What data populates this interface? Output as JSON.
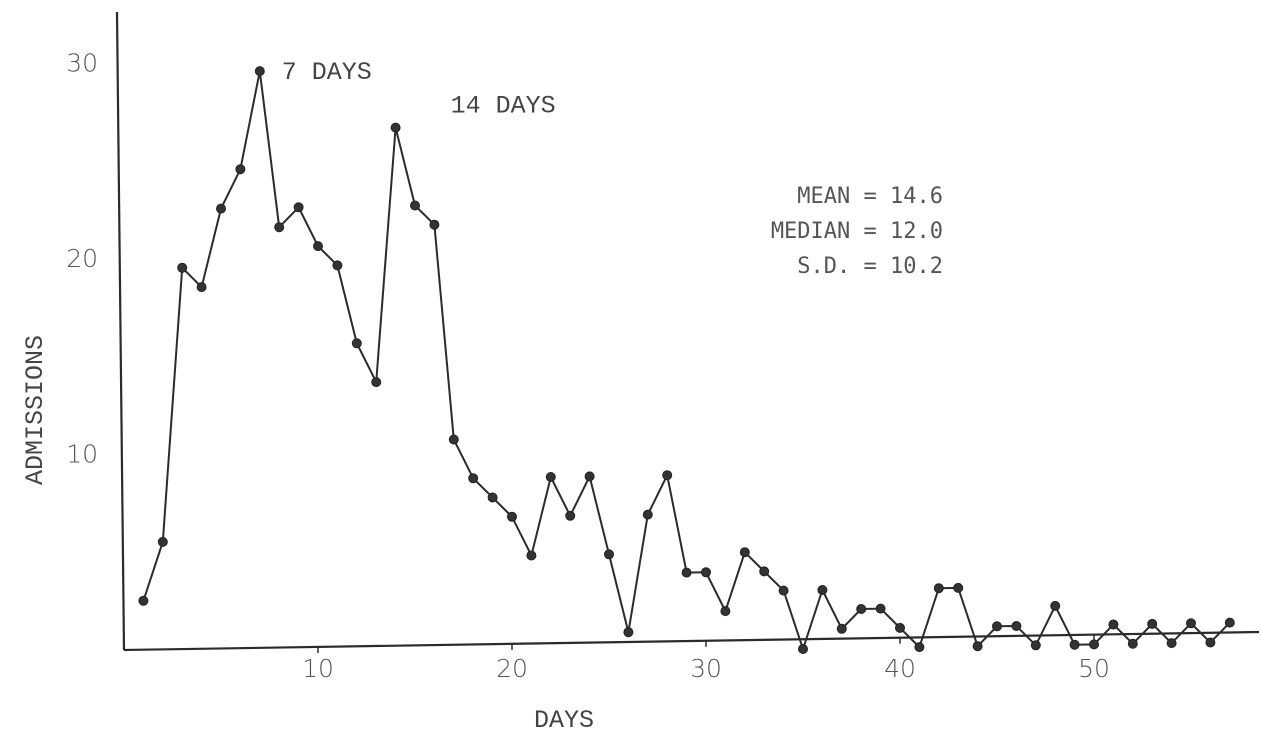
{
  "chart_data": {
    "type": "line",
    "title": "",
    "xlabel": "DAYS",
    "ylabel": "ADMISSIONS",
    "xlim": [
      0,
      58
    ],
    "ylim": [
      0,
      32
    ],
    "x_ticks": [
      10,
      20,
      30,
      40,
      50
    ],
    "y_ticks": [
      10,
      20,
      30
    ],
    "grid": false,
    "series": [
      {
        "x": [
          1,
          2,
          3,
          4,
          5,
          6,
          7,
          8,
          9,
          10,
          11,
          12,
          13,
          14,
          15,
          16,
          17,
          18,
          19,
          20,
          21,
          22,
          23,
          24,
          25,
          26,
          27,
          28,
          29,
          30,
          31,
          32,
          33,
          34,
          35,
          36,
          37,
          38,
          39,
          40,
          41,
          42,
          43,
          44,
          45,
          46,
          47,
          48,
          49,
          50,
          51,
          52,
          53,
          54,
          55,
          56,
          57
        ],
        "values": [
          2.5,
          5.5,
          19.5,
          18.5,
          22.5,
          24.5,
          29.5,
          21.5,
          22.5,
          20.5,
          19.5,
          15.5,
          13.5,
          26.5,
          22.5,
          21.5,
          10.5,
          8.5,
          7.5,
          6.5,
          4.5,
          8.5,
          6.5,
          8.5,
          4.5,
          0.5,
          6.5,
          8.5,
          3.5,
          3.5,
          1.5,
          4.5,
          3.5,
          2.5,
          -0.5,
          2.5,
          0.5,
          1.5,
          1.5,
          0.5,
          -0.5,
          2.5,
          2.5,
          -0.5,
          0.5,
          0.5,
          -0.5,
          1.5,
          -0.5,
          -0.5,
          0.5,
          -0.5,
          0.5,
          -0.5,
          0.5,
          -0.5,
          0.5
        ]
      }
    ],
    "annotations": [
      {
        "text": "7 DAYS",
        "x": 7,
        "y": 29.5
      },
      {
        "text": "14 DAYS",
        "x": 14,
        "y": 26.5
      }
    ],
    "stats": [
      "MEAN = 14.6",
      "MEDIAN = 12.0",
      "S.D. = 10.2"
    ]
  }
}
